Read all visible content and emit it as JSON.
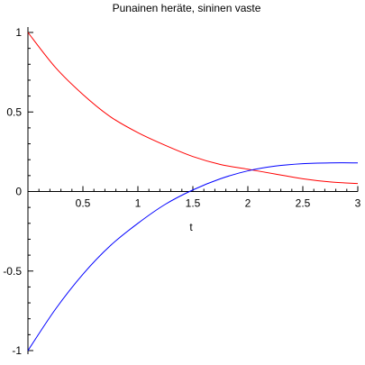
{
  "chart_data": {
    "type": "line",
    "title": "Punainen heräte, sininen vaste",
    "xlabel": "t",
    "ylabel": "",
    "xlim": [
      0,
      3
    ],
    "ylim": [
      -1,
      1
    ],
    "grid": false,
    "x_ticks": [
      0.5,
      1,
      1.5,
      2,
      2.5,
      3
    ],
    "x_tick_labels": [
      "0.5",
      "1",
      "1.5",
      "2",
      "2.5",
      "3"
    ],
    "y_ticks": [
      1,
      0.5,
      0,
      -0.5,
      -1
    ],
    "y_tick_labels": [
      "1",
      "0.5",
      "0",
      "-0.5",
      "-1"
    ],
    "series": [
      {
        "color": "#ff0000",
        "x": [
          0,
          0.25,
          0.5,
          0.75,
          1,
          1.25,
          1.5,
          1.75,
          2,
          2.25,
          2.5,
          2.75,
          3
        ],
        "y": [
          1,
          0.78,
          0.61,
          0.47,
          0.37,
          0.29,
          0.22,
          0.17,
          0.14,
          0.11,
          0.08,
          0.06,
          0.05
        ]
      },
      {
        "color": "#0000ff",
        "x": [
          0,
          0.25,
          0.5,
          0.75,
          1,
          1.25,
          1.5,
          1.75,
          2,
          2.25,
          2.5,
          2.75,
          3
        ],
        "y": [
          -1,
          -0.74,
          -0.52,
          -0.34,
          -0.2,
          -0.08,
          0.01,
          0.08,
          0.13,
          0.16,
          0.175,
          0.18,
          0.18
        ]
      }
    ]
  }
}
